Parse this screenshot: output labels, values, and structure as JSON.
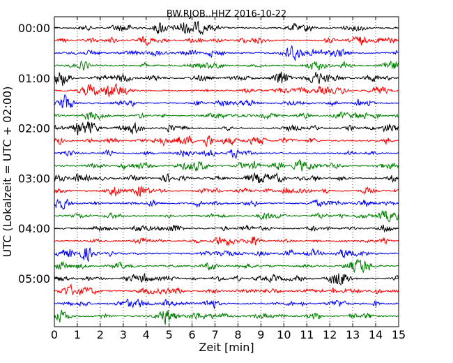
{
  "chart_data": {
    "type": "line",
    "title": "BW.RJOB..HHZ 2016-10-22",
    "xlabel": "Zeit  [min]",
    "ylabel": "UTC (Lokalzeit = UTC + 02:00)",
    "xlim": [
      0,
      15
    ],
    "x_ticks": [
      "0",
      "1",
      "2",
      "3",
      "4",
      "5",
      "6",
      "7",
      "8",
      "9",
      "10",
      "11",
      "12",
      "13",
      "14",
      "15"
    ],
    "y_tick_labels": [
      "00:00",
      "01:00",
      "02:00",
      "03:00",
      "04:00",
      "05:00"
    ],
    "traces_per_hour": 4,
    "trace_count": 24,
    "trace_colors": [
      "#000000",
      "#ff0000",
      "#0000ff",
      "#008000"
    ],
    "grid": "vertical dotted lines at each minute",
    "trace_offsets_min": [
      "00:00",
      "00:15",
      "00:30",
      "00:45",
      "01:00",
      "01:15",
      "01:30",
      "01:45",
      "02:00",
      "02:15",
      "02:30",
      "02:45",
      "03:00",
      "03:15",
      "03:30",
      "03:45",
      "04:00",
      "04:15",
      "04:30",
      "04:45",
      "05:00",
      "05:15",
      "05:30",
      "05:45"
    ]
  }
}
